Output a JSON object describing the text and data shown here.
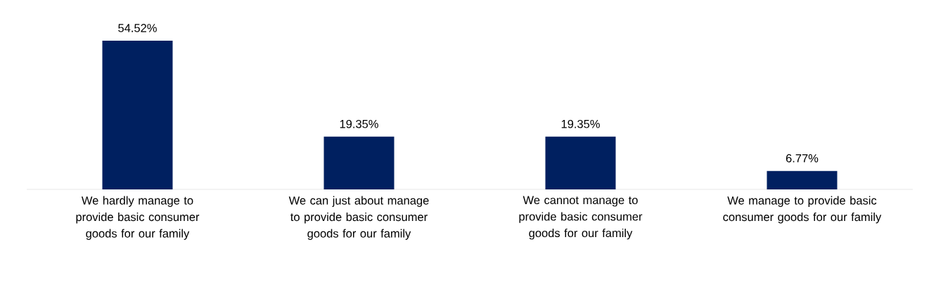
{
  "chart_data": {
    "type": "bar",
    "categories": [
      "We hardly manage to provide basic consumer goods for our family",
      "We can just about manage to provide basic consumer goods for our family",
      "We cannot manage to provide basic consumer goods for our family",
      "We manage to provide basic consumer goods for our family"
    ],
    "values": [
      54.52,
      19.35,
      19.35,
      6.77
    ],
    "value_labels": [
      "54.52%",
      "19.35%",
      "19.35%",
      "6.77%"
    ],
    "color": "#002060"
  }
}
